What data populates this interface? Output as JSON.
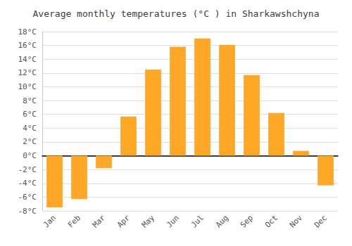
{
  "chart_data": {
    "type": "bar",
    "title": "Average monthly temperatures (°C ) in Sharkawshchyna",
    "categories": [
      "Jan",
      "Feb",
      "Mar",
      "Apr",
      "May",
      "Jun",
      "Jul",
      "Aug",
      "Sep",
      "Oct",
      "Nov",
      "Dec"
    ],
    "values": [
      -7.5,
      -6.3,
      -1.8,
      5.7,
      12.5,
      15.8,
      17.0,
      16.1,
      11.7,
      6.2,
      0.7,
      -4.3
    ],
    "color": "#FFA726",
    "ylim": [
      -8,
      18
    ],
    "yticks": [
      {
        "value": -8,
        "label": "-8°C"
      },
      {
        "value": -6,
        "label": "-6°C"
      },
      {
        "value": -4,
        "label": "-4°C"
      },
      {
        "value": -2,
        "label": "-2°C"
      },
      {
        "value": 0,
        "label": "0°C"
      },
      {
        "value": 2,
        "label": "2°C"
      },
      {
        "value": 4,
        "label": "4°C"
      },
      {
        "value": 6,
        "label": "6°C"
      },
      {
        "value": 8,
        "label": "8°C"
      },
      {
        "value": 10,
        "label": "10°C"
      },
      {
        "value": 12,
        "label": "12°C"
      },
      {
        "value": 14,
        "label": "14°C"
      },
      {
        "value": 16,
        "label": "16°C"
      },
      {
        "value": 18,
        "label": "18°C"
      }
    ],
    "grid": true
  }
}
